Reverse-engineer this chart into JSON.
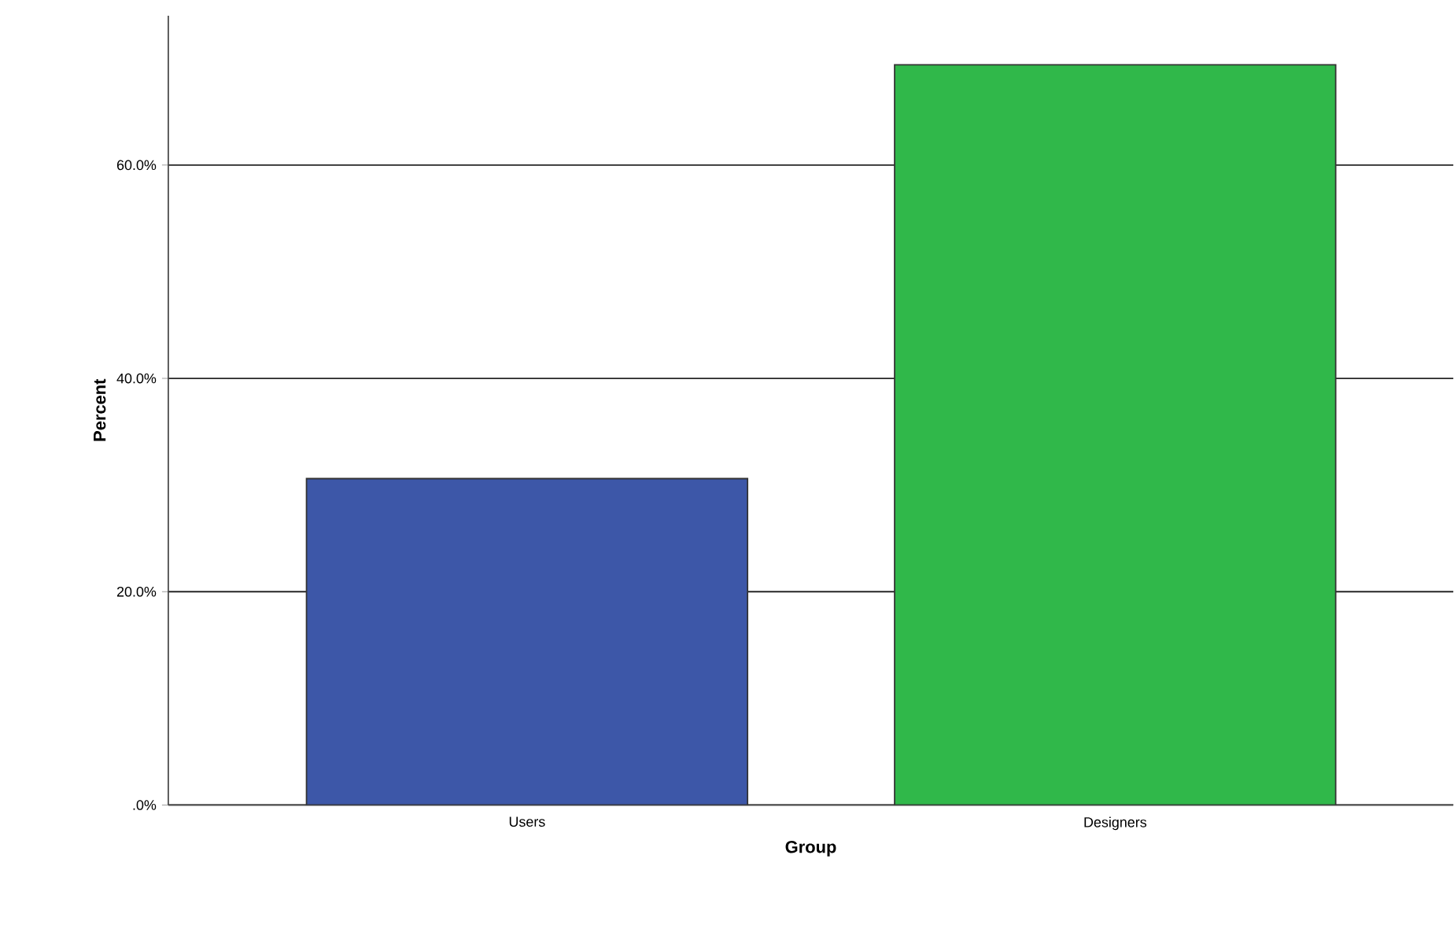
{
  "chart_data": {
    "type": "bar",
    "xlabel": "Group",
    "ylabel": "Percent",
    "categories": [
      "Users",
      "Designers"
    ],
    "colors": [
      "#3d57a8",
      "#30b84a"
    ],
    "values": [
      30.6,
      69.4
    ],
    "ylim": [
      0,
      74
    ],
    "yticks": [
      {
        "value": 0,
        "label": ".0%"
      },
      {
        "value": 20,
        "label": "20.0%"
      },
      {
        "value": 40,
        "label": "40.0%"
      },
      {
        "value": 60,
        "label": "60.0%"
      }
    ],
    "grid": "y"
  }
}
